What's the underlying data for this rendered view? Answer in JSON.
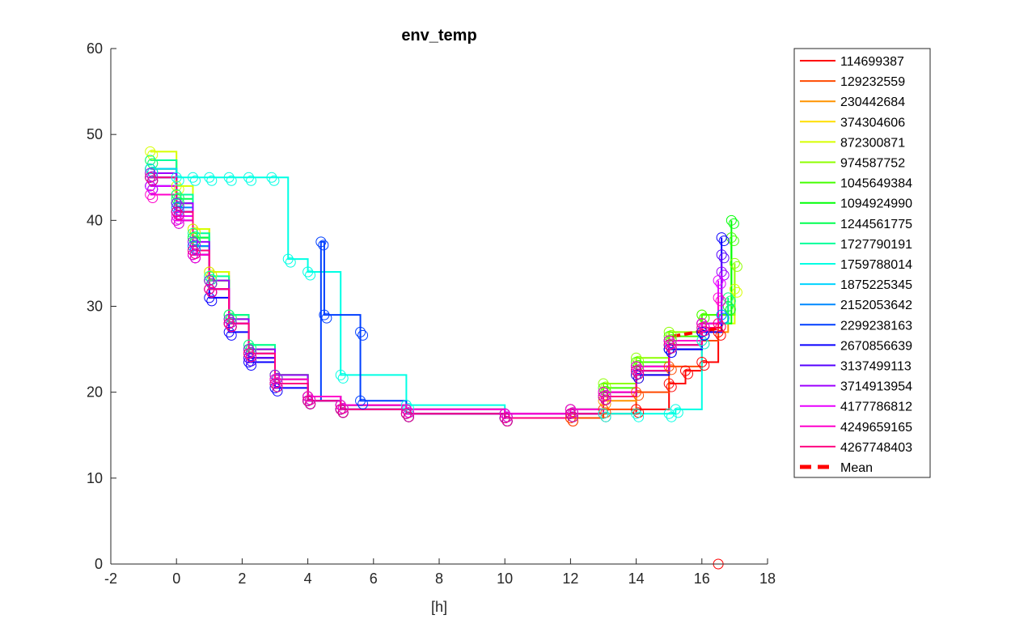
{
  "chart_data": {
    "type": "line",
    "title": "env_temp",
    "xlabel": "[h]",
    "ylabel": "",
    "xlim": [
      -2,
      18
    ],
    "ylim": [
      0,
      60
    ],
    "xticks": [
      -2,
      0,
      2,
      4,
      6,
      8,
      10,
      12,
      14,
      16,
      18
    ],
    "yticks": [
      0,
      10,
      20,
      30,
      40,
      50,
      60
    ],
    "grid": false,
    "legend_position": "outside-right",
    "markers": "open-circle",
    "series": [
      {
        "name": "114699387",
        "color": "#ff0000",
        "x": [
          -0.8,
          0,
          0.5,
          1,
          1.6,
          2.2,
          3,
          4,
          5,
          7,
          10,
          12,
          13,
          14,
          15,
          15.5,
          16,
          16.5
        ],
        "y": [
          45,
          42,
          38,
          33,
          28,
          24,
          21,
          19,
          18,
          17.5,
          17,
          17,
          17.5,
          18,
          21,
          22.5,
          23.5,
          27
        ]
      },
      {
        "name": "129232559",
        "color": "#ff4a00",
        "x": [
          -0.8,
          0,
          0.5,
          1,
          1.6,
          2.2,
          3,
          4,
          5,
          7,
          10,
          12,
          13,
          14,
          15,
          16,
          16.5
        ],
        "y": [
          46,
          43,
          39,
          34,
          29,
          25,
          22,
          19.5,
          18,
          17.5,
          17,
          17,
          18,
          20,
          23,
          26,
          28
        ]
      },
      {
        "name": "230442684",
        "color": "#ff9400",
        "x": [
          -0.8,
          0,
          0.5,
          1,
          1.6,
          2.2,
          3,
          4,
          5,
          7,
          10,
          12,
          13,
          14,
          15,
          16,
          16.8
        ],
        "y": [
          45.5,
          42,
          37,
          32,
          28,
          24.5,
          21,
          19,
          18,
          17.5,
          17,
          17.5,
          19,
          22,
          25,
          27,
          30
        ]
      },
      {
        "name": "374304606",
        "color": "#ffde00",
        "x": [
          -0.8,
          0,
          0.5,
          1,
          1.6,
          2.2,
          3,
          4,
          5,
          7,
          10,
          12,
          13,
          14,
          15,
          16,
          16.8
        ],
        "y": [
          47,
          43,
          38,
          33,
          28.5,
          24.5,
          21.5,
          19.5,
          18.5,
          18,
          17.5,
          18,
          19.5,
          22.5,
          25.5,
          28,
          31
        ]
      },
      {
        "name": "872300871",
        "color": "#d7ff00",
        "x": [
          -0.8,
          0,
          0.5,
          1,
          1.6,
          2.2,
          3,
          4,
          5,
          7,
          10,
          12,
          13,
          14,
          15,
          16,
          17
        ],
        "y": [
          48,
          44,
          39,
          34,
          29,
          25,
          22,
          19.5,
          18.5,
          18,
          17.5,
          18,
          20,
          23,
          26,
          28,
          32
        ]
      },
      {
        "name": "974587752",
        "color": "#8dff00",
        "x": [
          -0.8,
          0,
          0.5,
          1,
          1.6,
          2.2,
          3,
          4,
          5,
          7,
          10,
          12,
          13,
          14,
          15,
          16,
          17
        ],
        "y": [
          47,
          43,
          38,
          33,
          28,
          25,
          22,
          19.5,
          18.5,
          18,
          17.5,
          18,
          21,
          24,
          27,
          29,
          35
        ]
      },
      {
        "name": "1045649384",
        "color": "#43ff00",
        "x": [
          -0.8,
          0,
          0.5,
          1,
          1.6,
          2.2,
          3,
          4,
          5,
          7,
          10,
          12,
          13,
          14,
          15,
          16,
          16.9
        ],
        "y": [
          46,
          42,
          38,
          33,
          29,
          25.5,
          22,
          19.5,
          18.5,
          18,
          17.5,
          18,
          20.5,
          23.5,
          26.5,
          29,
          38
        ]
      },
      {
        "name": "1094924990",
        "color": "#00ff06",
        "x": [
          -0.8,
          0,
          0.5,
          1,
          1.6,
          2.2,
          3,
          4,
          5,
          7,
          10,
          12,
          13,
          14,
          15,
          16,
          16.9
        ],
        "y": [
          45,
          42,
          37,
          32,
          28,
          25,
          21.5,
          19,
          18,
          17.5,
          17,
          17.5,
          20,
          23,
          26,
          28,
          40
        ]
      },
      {
        "name": "1244561775",
        "color": "#00ff50",
        "x": [
          -0.8,
          0,
          0.5,
          1,
          1.6,
          2.2,
          3,
          4,
          5,
          7,
          10,
          12,
          13,
          14,
          15,
          16,
          16.8
        ],
        "y": [
          46,
          42.5,
          38,
          33,
          28.5,
          25,
          22,
          19.5,
          18.5,
          18,
          17.5,
          18,
          20,
          23,
          26,
          28,
          30
        ]
      },
      {
        "name": "1727790191",
        "color": "#00ff9a",
        "x": [
          -0.8,
          0,
          0.5,
          1,
          1.6,
          2.2,
          3,
          4,
          5,
          7,
          10,
          12,
          13,
          14,
          15,
          16,
          16.8
        ],
        "y": [
          47,
          43,
          38.5,
          33.5,
          29,
          25.5,
          22,
          19.5,
          18.5,
          18,
          17.5,
          18,
          20,
          23,
          26,
          28,
          31
        ]
      },
      {
        "name": "1759788014",
        "color": "#00ffe4",
        "x": [
          -0.8,
          0,
          0.5,
          1,
          1.6,
          2.2,
          2.9,
          3.4,
          4,
          5,
          7,
          10,
          12,
          13,
          14,
          15,
          15.2,
          16
        ],
        "y": [
          45,
          45,
          45,
          45,
          45,
          45,
          45,
          35.5,
          34,
          22,
          18.5,
          17.5,
          17.5,
          17.5,
          17.5,
          17.5,
          18,
          26
        ]
      },
      {
        "name": "1875225345",
        "color": "#00d4ff",
        "x": [
          -0.8,
          0,
          0.5,
          1,
          1.6,
          2.2,
          3,
          4,
          5,
          7,
          10,
          12,
          13,
          14,
          15,
          16,
          16.6
        ],
        "y": [
          46,
          42,
          37,
          32,
          28,
          24.5,
          21,
          19,
          18,
          17.5,
          17,
          17.5,
          19.5,
          22.5,
          25.5,
          27.5,
          29
        ]
      },
      {
        "name": "2152053642",
        "color": "#0089ff",
        "x": [
          -0.8,
          0,
          0.5,
          1,
          1.6,
          2.2,
          3,
          4,
          5,
          7,
          10,
          12,
          13,
          14,
          15,
          16,
          16.6
        ],
        "y": [
          45,
          41.5,
          37,
          32,
          28,
          24.5,
          21,
          19,
          18,
          17.5,
          17,
          17.5,
          19.5,
          22.5,
          25,
          27,
          29
        ]
      },
      {
        "name": "2299238163",
        "color": "#003fff",
        "x": [
          -0.8,
          0,
          0.5,
          1,
          1.6,
          2.2,
          3,
          4,
          4.4,
          4.5,
          5.6,
          5.6,
          7,
          10,
          12,
          13,
          14,
          15,
          16
        ],
        "y": [
          44,
          41,
          36,
          32,
          28,
          24,
          21,
          19,
          37.5,
          29,
          27,
          19,
          18,
          17.5,
          17.5,
          19.5,
          22.5,
          25,
          27
        ]
      },
      {
        "name": "2670856639",
        "color": "#0a00ff",
        "x": [
          -0.8,
          0,
          0.5,
          1,
          1.6,
          2.2,
          3,
          4,
          5,
          7,
          10,
          12,
          13,
          14,
          15,
          16,
          16.6
        ],
        "y": [
          44,
          40,
          36,
          31,
          27,
          23.5,
          20.5,
          19,
          18,
          17.5,
          17,
          17.5,
          19.5,
          22,
          25,
          27,
          38
        ]
      },
      {
        "name": "3137499113",
        "color": "#5400ff",
        "x": [
          -0.8,
          0,
          0.5,
          1,
          1.6,
          2.2,
          3,
          4,
          5,
          7,
          10,
          12,
          13,
          14,
          15,
          16,
          16.6
        ],
        "y": [
          45,
          41,
          36.5,
          32,
          28,
          24,
          21,
          19,
          18,
          17.5,
          17,
          17.5,
          19.5,
          22.5,
          25.5,
          28,
          36
        ]
      },
      {
        "name": "3714913954",
        "color": "#9e00ff",
        "x": [
          -0.8,
          0,
          0.5,
          1,
          1.6,
          2.2,
          3,
          4,
          5,
          7,
          10,
          12,
          13,
          14,
          15,
          16,
          16.6
        ],
        "y": [
          45.5,
          42,
          37.5,
          33,
          28.5,
          25,
          22,
          19.5,
          18.5,
          18,
          17.5,
          18,
          20,
          23,
          26,
          28,
          34
        ]
      },
      {
        "name": "4177786812",
        "color": "#e800ff",
        "x": [
          -0.8,
          0,
          0.5,
          1,
          1.6,
          2.2,
          3,
          4,
          5,
          7,
          10,
          12,
          13,
          14,
          15,
          16,
          16.5
        ],
        "y": [
          44,
          40.5,
          36,
          32,
          28,
          24.5,
          21.5,
          19.5,
          18.5,
          18,
          17.5,
          18,
          20,
          23,
          26,
          28,
          33
        ]
      },
      {
        "name": "4249659165",
        "color": "#ff00cb",
        "x": [
          -0.8,
          0,
          0.5,
          1,
          1.6,
          2.2,
          3,
          4,
          5,
          7,
          10,
          12,
          13,
          14,
          15,
          16,
          16.5
        ],
        "y": [
          43,
          40,
          36,
          32,
          28,
          24.5,
          21.5,
          19.5,
          18.5,
          18,
          17.5,
          18,
          20,
          23,
          26,
          28,
          31
        ]
      },
      {
        "name": "4267748403",
        "color": "#ff0081",
        "x": [
          -0.8,
          0,
          0.5,
          1,
          1.6,
          2.2,
          3,
          4,
          5,
          7,
          10,
          12,
          13,
          14,
          15,
          16,
          16.5
        ],
        "y": [
          45,
          41,
          36.5,
          32,
          28,
          24.5,
          21,
          19,
          18,
          17.5,
          17,
          17.5,
          19.5,
          22.5,
          25.5,
          27.5,
          28
        ]
      }
    ],
    "mean": {
      "name": "Mean",
      "color": "#ff0000",
      "style": "dashed",
      "x": [
        15.1,
        16.6
      ],
      "y": [
        26.5,
        27.5
      ]
    },
    "outlier": {
      "color": "#ff0000",
      "x": 16.5,
      "y": 0
    }
  }
}
